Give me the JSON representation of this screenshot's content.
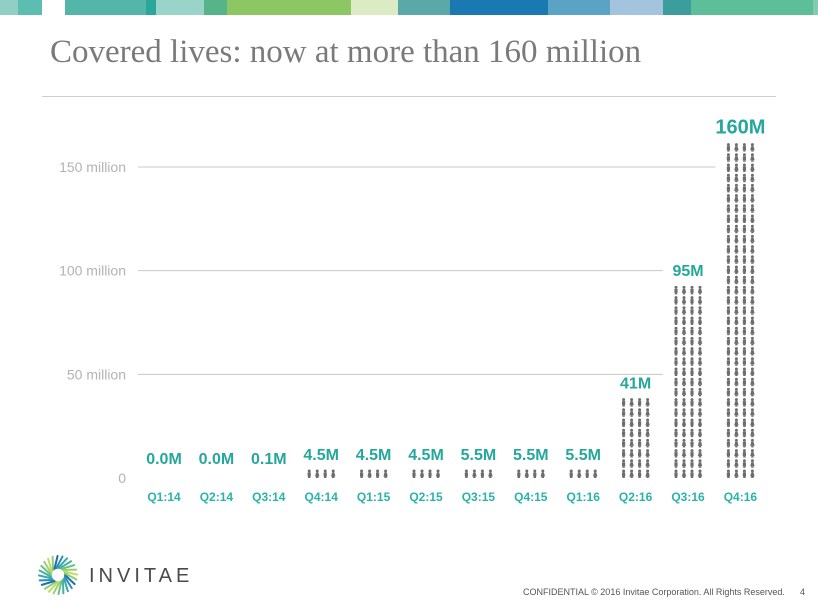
{
  "header": {
    "title": "Covered lives: now at more than 160 million",
    "band_colors": [
      "#8fcfc6",
      "#5cbdb1",
      "#ffffff",
      "#54b6a8",
      "#2da69a",
      "#9ad3c8",
      "#57b488",
      "#8dc763",
      "#dcebc4",
      "#5aa8a8",
      "#1a79b0",
      "#5aa3c4",
      "#a4c3de",
      "#3b9e9c",
      "#5cbf99",
      "#83cbb0"
    ]
  },
  "chart_data": {
    "type": "bar",
    "title": "",
    "xlabel": "",
    "ylabel": "",
    "ylim": [
      0,
      150
    ],
    "yticks": [
      {
        "value": 0,
        "label": "0"
      },
      {
        "value": 50,
        "label": "50 million"
      },
      {
        "value": 100,
        "label": "100 million"
      },
      {
        "value": 150,
        "label": "150 million"
      }
    ],
    "categories": [
      "Q1:14",
      "Q2:14",
      "Q3:14",
      "Q4:14",
      "Q1:15",
      "Q2:15",
      "Q3:15",
      "Q4:15",
      "Q1:16",
      "Q2:16",
      "Q3:16",
      "Q4:16"
    ],
    "values": [
      0.0,
      0.0,
      0.1,
      4.5,
      4.5,
      4.5,
      5.5,
      5.5,
      5.5,
      41,
      95,
      160
    ],
    "value_labels": [
      "0.0M",
      "0.0M",
      "0.1M",
      "4.5M",
      "4.5M",
      "4.5M",
      "5.5M",
      "5.5M",
      "5.5M",
      "41M",
      "95M",
      "160M"
    ],
    "grid": true,
    "colors": {
      "label": "#26a79b",
      "category": "#2ab3a8",
      "tick": "#b3b3b3",
      "grid": "#c8c8c8",
      "people": "#6d6d6d"
    }
  },
  "footer": {
    "brand": "INVITAE",
    "confidential": "CONFIDENTIAL © 2016 Invitae Corporation. All Rights Reserved.",
    "page": "4",
    "logo_icon": "invitae-spiral-logo"
  }
}
